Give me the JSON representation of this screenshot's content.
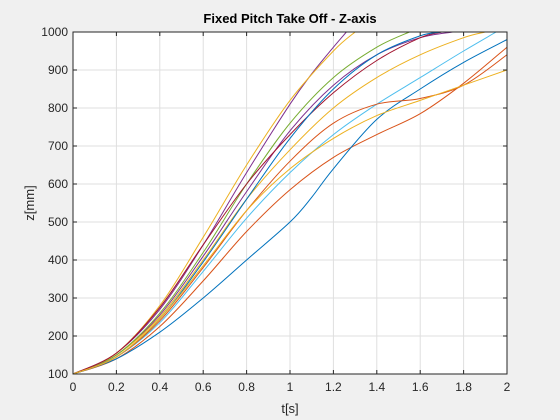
{
  "chart_data": {
    "type": "line",
    "title": "Fixed Pitch Take Off - Z-axis",
    "xlabel": "t[s]",
    "ylabel": "z[mm]",
    "xlim": [
      0,
      2
    ],
    "ylim": [
      100,
      1000
    ],
    "xticks": [
      0,
      0.2,
      0.4,
      0.6,
      0.8,
      1,
      1.2,
      1.4,
      1.6,
      1.8,
      2
    ],
    "xtick_labels": [
      "0",
      "0.2",
      "0.4",
      "0.6",
      "0.8",
      "1",
      "1.2",
      "1.4",
      "1.6",
      "1.8",
      "2"
    ],
    "yticks": [
      100,
      200,
      300,
      400,
      500,
      600,
      700,
      800,
      900,
      1000
    ],
    "ytick_labels": [
      "100",
      "200",
      "300",
      "400",
      "500",
      "600",
      "700",
      "800",
      "900",
      "1000"
    ],
    "grid": true,
    "series": [
      {
        "color": "#7e2f8e",
        "x": [
          0,
          0.2,
          0.4,
          0.6,
          0.8,
          1.0,
          1.1,
          1.2,
          1.26
        ],
        "y": [
          100,
          155,
          270,
          440,
          630,
          810,
          890,
          960,
          1000
        ]
      },
      {
        "color": "#7e2f8e",
        "x": [
          0,
          0.2,
          0.4,
          0.6,
          0.8,
          1.0,
          1.2,
          1.4,
          1.6,
          1.75
        ],
        "y": [
          100,
          150,
          255,
          410,
          580,
          740,
          860,
          940,
          985,
          1000
        ]
      },
      {
        "color": "#edb120",
        "x": [
          0,
          0.2,
          0.4,
          0.6,
          0.8,
          1.0,
          1.2,
          1.3
        ],
        "y": [
          100,
          155,
          280,
          460,
          650,
          820,
          950,
          1000
        ]
      },
      {
        "color": "#edb120",
        "x": [
          0,
          0.2,
          0.4,
          0.6,
          0.8,
          1.0,
          1.2,
          1.4,
          1.6,
          1.8,
          1.9
        ],
        "y": [
          100,
          150,
          250,
          400,
          560,
          690,
          800,
          880,
          940,
          985,
          1000
        ]
      },
      {
        "color": "#77ac30",
        "x": [
          0,
          0.2,
          0.4,
          0.6,
          0.8,
          1.0,
          1.2,
          1.4,
          1.55
        ],
        "y": [
          100,
          150,
          260,
          420,
          600,
          760,
          880,
          960,
          1000
        ]
      },
      {
        "color": "#4dbeee",
        "x": [
          0,
          0.2,
          0.4,
          0.6,
          0.8,
          1.0,
          1.2,
          1.4,
          1.6,
          1.8,
          1.95
        ],
        "y": [
          100,
          145,
          235,
          370,
          510,
          630,
          730,
          810,
          880,
          950,
          1000
        ]
      },
      {
        "color": "#d95319",
        "x": [
          0,
          0.2,
          0.4,
          0.6,
          0.8,
          1.0,
          1.2,
          1.4,
          1.6,
          1.8,
          2.0
        ],
        "y": [
          100,
          140,
          225,
          345,
          475,
          585,
          670,
          730,
          785,
          865,
          960
        ]
      },
      {
        "color": "#a2142f",
        "x": [
          0,
          0.2,
          0.4,
          0.6,
          0.8,
          1.0,
          1.2,
          1.4,
          1.6,
          1.7
        ],
        "y": [
          100,
          155,
          275,
          440,
          600,
          730,
          840,
          925,
          985,
          1000
        ]
      },
      {
        "color": "#0072bd",
        "x": [
          0,
          0.2,
          0.4,
          0.6,
          0.8,
          1.0,
          1.1,
          1.2,
          1.4,
          1.6,
          1.8,
          2.0
        ],
        "y": [
          100,
          140,
          210,
          300,
          400,
          500,
          565,
          640,
          770,
          850,
          920,
          980
        ]
      },
      {
        "color": "#0072bd",
        "x": [
          0,
          0.2,
          0.4,
          0.6,
          0.8,
          1.0,
          1.2,
          1.4,
          1.6,
          1.7
        ],
        "y": [
          100,
          145,
          245,
          395,
          560,
          720,
          850,
          940,
          990,
          1000
        ]
      },
      {
        "color": "#d95319",
        "x": [
          0,
          0.2,
          0.4,
          0.6,
          0.8,
          1.0,
          1.2,
          1.4,
          1.6,
          1.8,
          2.0
        ],
        "y": [
          100,
          145,
          240,
          380,
          530,
          660,
          760,
          810,
          825,
          860,
          940
        ]
      },
      {
        "color": "#edb120",
        "x": [
          0,
          0.2,
          0.4,
          0.6,
          0.8,
          1.0,
          1.2,
          1.4,
          1.6,
          1.8,
          2.0
        ],
        "y": [
          100,
          145,
          245,
          385,
          530,
          640,
          720,
          780,
          820,
          860,
          900
        ]
      }
    ]
  }
}
